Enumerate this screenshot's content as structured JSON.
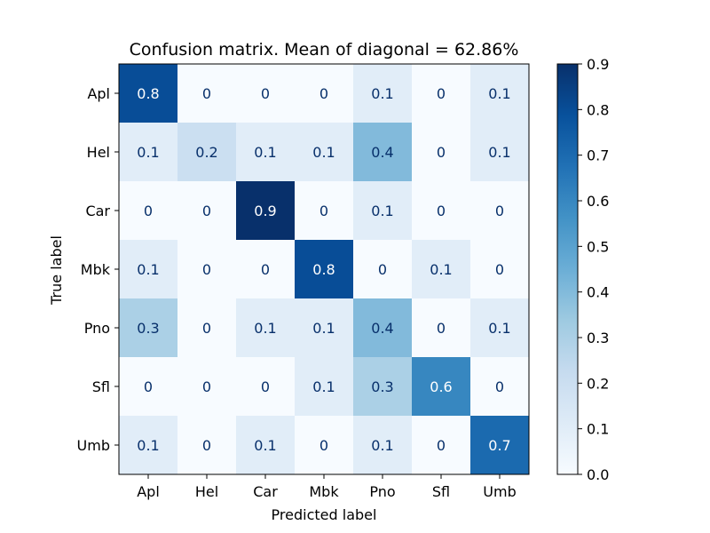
{
  "chart_data": {
    "type": "heatmap",
    "title": "Confusion matrix. Mean of diagonal = 62.86%",
    "xlabel": "Predicted label",
    "ylabel": "True label",
    "x_categories": [
      "Apl",
      "Hel",
      "Car",
      "Mbk",
      "Pno",
      "Sfl",
      "Umb"
    ],
    "y_categories": [
      "Apl",
      "Hel",
      "Car",
      "Mbk",
      "Pno",
      "Sfl",
      "Umb"
    ],
    "values": [
      [
        0.8,
        0,
        0,
        0,
        0.1,
        0,
        0.1
      ],
      [
        0.1,
        0.2,
        0.1,
        0.1,
        0.4,
        0,
        0.1
      ],
      [
        0,
        0,
        0.9,
        0,
        0.1,
        0,
        0
      ],
      [
        0.1,
        0,
        0,
        0.8,
        0,
        0.1,
        0
      ],
      [
        0.3,
        0,
        0.1,
        0.1,
        0.4,
        0,
        0.1
      ],
      [
        0,
        0,
        0,
        0.1,
        0.3,
        0.6,
        0
      ],
      [
        0.1,
        0,
        0.1,
        0,
        0.1,
        0,
        0.7
      ]
    ],
    "cell_labels": [
      [
        "0.8",
        "0",
        "0",
        "0",
        "0.1",
        "0",
        "0.1"
      ],
      [
        "0.1",
        "0.2",
        "0.1",
        "0.1",
        "0.4",
        "0",
        "0.1"
      ],
      [
        "0",
        "0",
        "0.9",
        "0",
        "0.1",
        "0",
        "0"
      ],
      [
        "0.1",
        "0",
        "0",
        "0.8",
        "0",
        "0.1",
        "0"
      ],
      [
        "0.3",
        "0",
        "0.1",
        "0.1",
        "0.4",
        "0",
        "0.1"
      ],
      [
        "0",
        "0",
        "0",
        "0.1",
        "0.3",
        "0.6",
        "0"
      ],
      [
        "0.1",
        "0",
        "0.1",
        "0",
        "0.1",
        "0",
        "0.7"
      ]
    ],
    "colorbar": {
      "range": [
        0,
        0.9
      ],
      "ticks": [
        "0.0",
        "0.1",
        "0.2",
        "0.3",
        "0.4",
        "0.5",
        "0.6",
        "0.7",
        "0.8",
        "0.9"
      ],
      "colormap": "Blues"
    },
    "grid": false,
    "legend": "none"
  }
}
